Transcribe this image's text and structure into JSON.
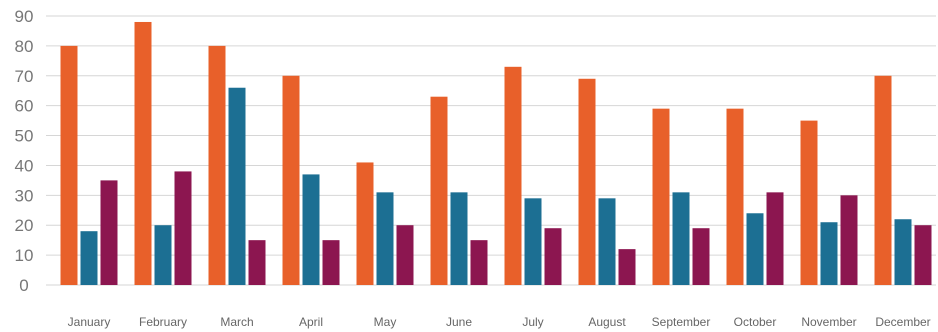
{
  "chart_data": {
    "type": "bar",
    "title": "",
    "xlabel": "",
    "ylabel": "",
    "ylim": [
      0,
      90
    ],
    "yticks": [
      0,
      10,
      20,
      30,
      40,
      50,
      60,
      70,
      80,
      90
    ],
    "grid": true,
    "legend": "none",
    "categories": [
      "January",
      "February",
      "March",
      "April",
      "May",
      "June",
      "July",
      "August",
      "September",
      "October",
      "November",
      "December"
    ],
    "series": [
      {
        "color": "#e8602a",
        "values": [
          80,
          88,
          80,
          70,
          41,
          63,
          73,
          69,
          59,
          59,
          55,
          70
        ]
      },
      {
        "color": "#1c6f93",
        "values": [
          18,
          20,
          66,
          37,
          31,
          31,
          29,
          29,
          31,
          24,
          21,
          22
        ]
      },
      {
        "color": "#8c1650",
        "values": [
          35,
          38,
          15,
          15,
          20,
          15,
          19,
          12,
          19,
          31,
          30,
          20
        ]
      }
    ]
  }
}
